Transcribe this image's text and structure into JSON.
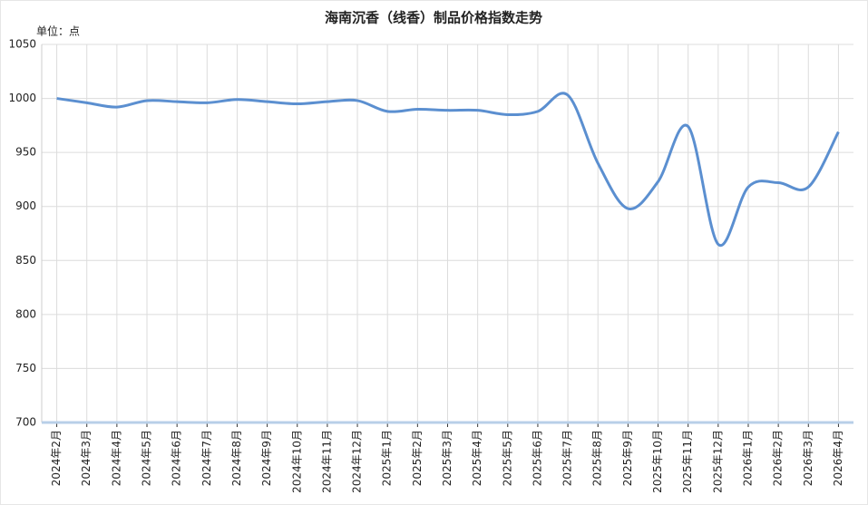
{
  "chart_data": {
    "type": "line",
    "title": "海南沉香（线香）制品价格指数走势",
    "y_unit": "单位：点",
    "categories": [
      "2024年2月",
      "2024年3月",
      "2024年4月",
      "2024年5月",
      "2024年6月",
      "2024年7月",
      "2024年8月",
      "2024年9月",
      "2024年10月",
      "2024年11月",
      "2024年12月",
      "2025年1月",
      "2025年2月",
      "2025年3月",
      "2025年4月",
      "2025年5月",
      "2025年6月",
      "2025年7月",
      "2025年8月",
      "2025年9月",
      "2025年10月",
      "2025年11月",
      "2025年12月",
      "2026年1月",
      "2026年2月",
      "2026年3月",
      "2026年4月"
    ],
    "values": [
      1000,
      996,
      992,
      998,
      997,
      996,
      999,
      997,
      995,
      997,
      998,
      988,
      990,
      989,
      989,
      985,
      988,
      1003,
      940,
      898,
      923,
      974,
      865,
      918,
      922,
      918,
      969
    ],
    "color": "#5b8fd0",
    "ylim": [
      700,
      1050
    ],
    "yticks": [
      700,
      750,
      800,
      850,
      900,
      950,
      1000,
      1050
    ],
    "grid": true
  }
}
